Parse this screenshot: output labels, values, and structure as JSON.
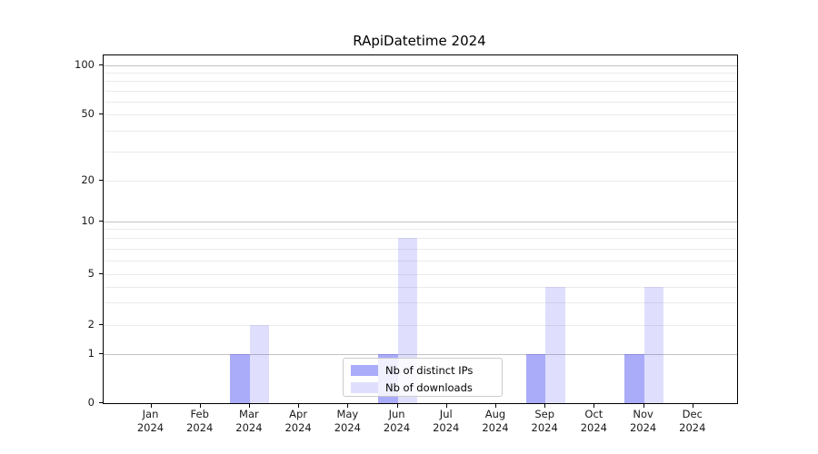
{
  "chart_data": {
    "type": "bar",
    "title": "RApiDatetime 2024",
    "categories": [
      "Jan 2024",
      "Feb 2024",
      "Mar 2024",
      "Apr 2024",
      "May 2024",
      "Jun 2024",
      "Jul 2024",
      "Aug 2024",
      "Sep 2024",
      "Oct 2024",
      "Nov 2024",
      "Dec 2024"
    ],
    "series": [
      {
        "name": "Nb of distinct IPs",
        "color": "rgba(85,87,243,0.50)",
        "values": [
          0,
          0,
          1,
          0,
          0,
          1,
          0,
          0,
          1,
          0,
          1,
          0
        ]
      },
      {
        "name": "Nb of downloads",
        "color": "rgba(85,87,243,0.19)",
        "values": [
          0,
          0,
          2,
          0,
          0,
          8,
          0,
          0,
          4,
          0,
          4,
          0
        ]
      }
    ],
    "xlabel": "",
    "ylabel": "",
    "yscale": "symlog",
    "y_ticks": [
      0,
      1,
      2,
      5,
      10,
      20,
      50,
      100
    ],
    "ylim": [
      0,
      115
    ],
    "grid": {
      "major": [
        1,
        10,
        100
      ],
      "minor": [
        2,
        3,
        4,
        5,
        6,
        7,
        8,
        9,
        20,
        30,
        40,
        50,
        60,
        70,
        80,
        90
      ]
    },
    "legend_position": "lower center"
  },
  "legend": {
    "items": [
      {
        "label": "Nb of distinct IPs",
        "color": "rgba(85,87,243,0.50)"
      },
      {
        "label": "Nb of downloads",
        "color": "rgba(85,87,243,0.19)"
      }
    ]
  }
}
